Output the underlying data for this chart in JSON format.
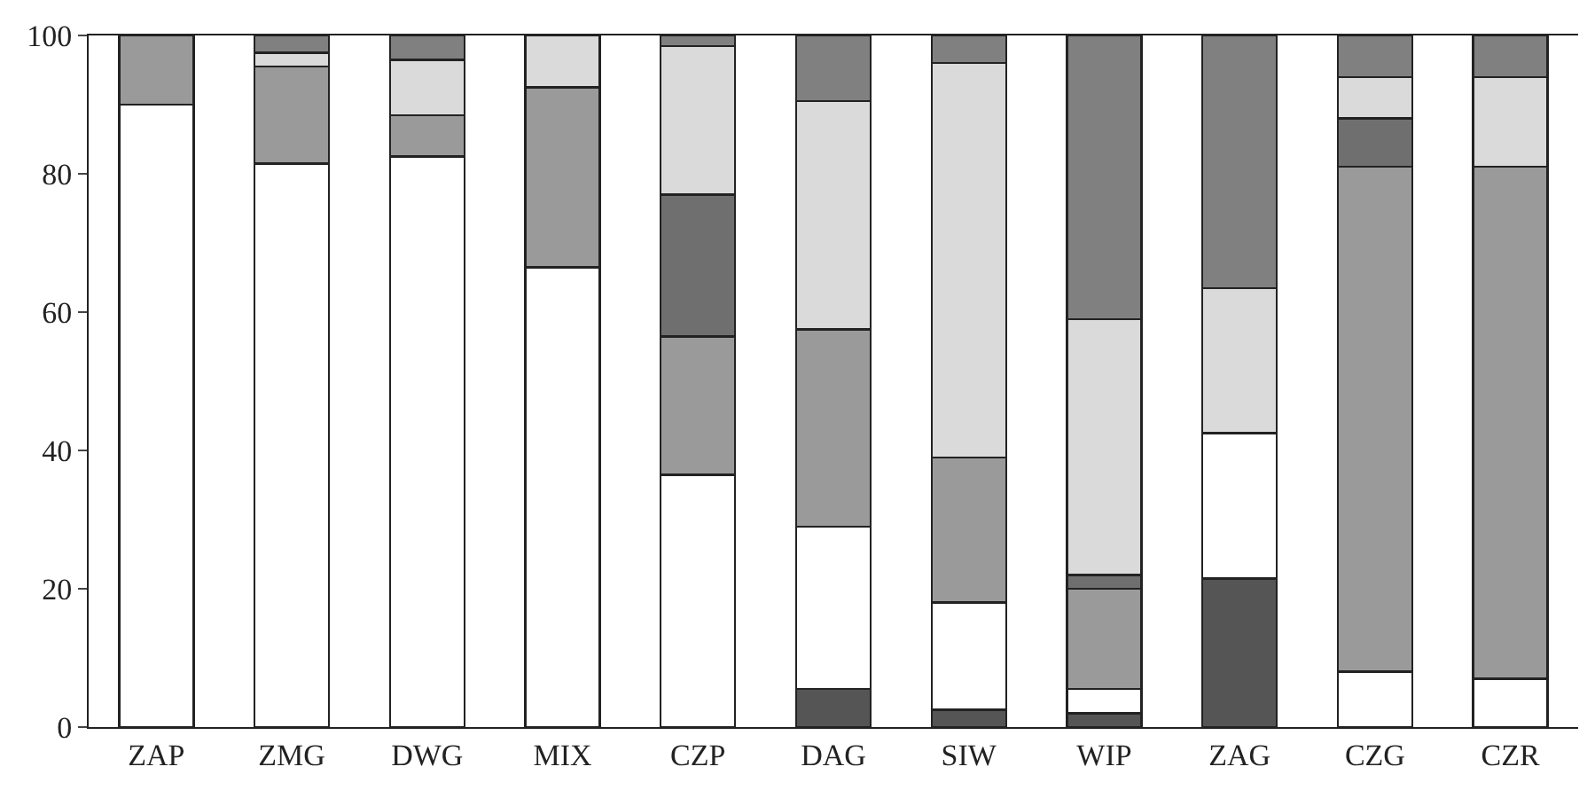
{
  "chart_data": {
    "type": "bar",
    "stacked": true,
    "categories": [
      "ZAP",
      "ZMG",
      "DWG",
      "MIX",
      "CZP",
      "DAG",
      "SIW",
      "WIP",
      "ZAG",
      "CZG",
      "CZR"
    ],
    "series": [
      {
        "color": "#555555",
        "values": [
          null,
          null,
          null,
          null,
          null,
          5.5,
          2.5,
          2,
          21.5,
          null,
          null
        ]
      },
      {
        "color": "#ffffff",
        "values": [
          90,
          81.5,
          82.5,
          66.5,
          36.5,
          23.5,
          15.5,
          3.5,
          21,
          8,
          7
        ]
      },
      {
        "color": "#9a9a9a",
        "values": [
          10,
          14,
          6,
          26,
          20,
          28.5,
          21,
          14.5,
          null,
          73,
          74
        ]
      },
      {
        "color": "#6f6f6f",
        "values": [
          null,
          null,
          null,
          null,
          20.5,
          null,
          null,
          2,
          null,
          7,
          null
        ]
      },
      {
        "color": "#dadada",
        "values": [
          null,
          2,
          8,
          7.5,
          21.5,
          33,
          57,
          37,
          21,
          6,
          13
        ]
      },
      {
        "color": "#808080",
        "values": [
          null,
          2.5,
          3.5,
          null,
          1.5,
          9.5,
          4,
          41,
          36.5,
          6,
          6
        ]
      }
    ],
    "ylim": [
      0,
      100
    ],
    "yticks": [
      0,
      20,
      40,
      60,
      80,
      100
    ],
    "legend": false
  }
}
